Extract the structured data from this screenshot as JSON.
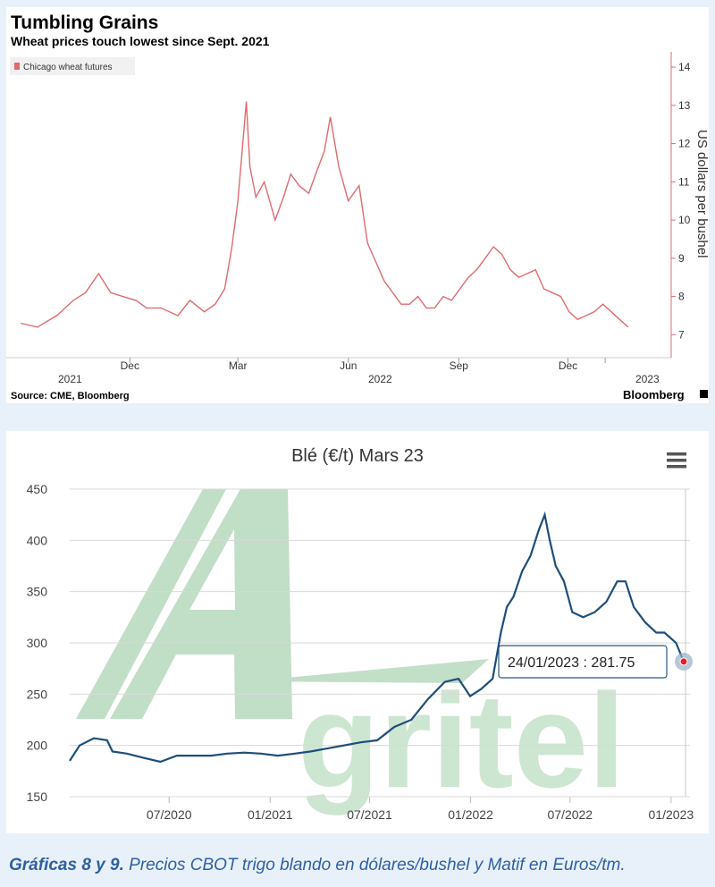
{
  "chart_data": [
    {
      "type": "line",
      "title": "Tumbling Grains",
      "subtitle": "Wheat prices touch lowest since Sept. 2021",
      "ylabel": "US dollars per bushel",
      "legend": "top-left",
      "source": "Source: CME, Bloomberg",
      "brand": "Bloomberg",
      "ylim": [
        6.4,
        14.4
      ],
      "yticks": [
        7,
        8,
        9,
        10,
        11,
        12,
        13,
        14
      ],
      "xticks": [
        "Dec",
        "Mar",
        "Jun",
        "Sep",
        "Dec"
      ],
      "year_labels": [
        "2021",
        "2022",
        "2023"
      ],
      "grid": false,
      "color": "#e06a70",
      "series": [
        {
          "name": "Chicago wheat futures",
          "x": [
            "2021-09-01",
            "2021-09-15",
            "2021-10-01",
            "2021-10-15",
            "2021-10-25",
            "2021-11-05",
            "2021-11-15",
            "2021-11-25",
            "2021-12-06",
            "2021-12-15",
            "2021-12-27",
            "2022-01-10",
            "2022-01-20",
            "2022-02-01",
            "2022-02-10",
            "2022-02-18",
            "2022-02-24",
            "2022-03-01",
            "2022-03-04",
            "2022-03-08",
            "2022-03-11",
            "2022-03-16",
            "2022-03-23",
            "2022-04-01",
            "2022-04-08",
            "2022-04-14",
            "2022-04-21",
            "2022-04-29",
            "2022-05-06",
            "2022-05-12",
            "2022-05-17",
            "2022-05-24",
            "2022-06-01",
            "2022-06-10",
            "2022-06-17",
            "2022-06-24",
            "2022-07-01",
            "2022-07-08",
            "2022-07-15",
            "2022-07-22",
            "2022-07-29",
            "2022-08-05",
            "2022-08-12",
            "2022-08-19",
            "2022-08-26",
            "2022-09-02",
            "2022-09-09",
            "2022-09-16",
            "2022-09-23",
            "2022-09-30",
            "2022-10-07",
            "2022-10-14",
            "2022-10-21",
            "2022-10-28",
            "2022-11-04",
            "2022-11-11",
            "2022-11-18",
            "2022-11-25",
            "2022-12-02",
            "2022-12-09",
            "2022-12-16",
            "2022-12-23",
            "2022-12-30",
            "2023-01-06",
            "2023-01-13",
            "2023-01-20"
          ],
          "values": [
            7.3,
            7.2,
            7.5,
            7.9,
            8.1,
            8.6,
            8.1,
            8.0,
            7.9,
            7.7,
            7.7,
            7.5,
            7.9,
            7.6,
            7.8,
            8.2,
            9.3,
            10.5,
            11.6,
            13.1,
            11.4,
            10.6,
            11.0,
            10.0,
            10.6,
            11.2,
            10.9,
            10.7,
            11.3,
            11.8,
            12.7,
            11.4,
            10.5,
            10.9,
            9.4,
            8.9,
            8.4,
            8.1,
            7.8,
            7.8,
            8.0,
            7.7,
            7.7,
            8.0,
            7.9,
            8.2,
            8.5,
            8.7,
            9.0,
            9.3,
            9.1,
            8.7,
            8.5,
            8.6,
            8.7,
            8.2,
            8.1,
            8.0,
            7.6,
            7.4,
            7.5,
            7.6,
            7.8,
            7.6,
            7.4,
            7.2
          ]
        }
      ]
    },
    {
      "type": "line",
      "title": "Blé (€/t) Mars 23",
      "ylim": [
        150,
        450
      ],
      "yticks": [
        150,
        200,
        250,
        300,
        350,
        400,
        450
      ],
      "xticks": [
        "07/2020",
        "01/2021",
        "07/2021",
        "01/2022",
        "07/2022",
        "01/2023"
      ],
      "grid": true,
      "color": "#1e4e79",
      "watermark": "Agritel",
      "tooltip": "24/01/2023 : 281.75",
      "series": [
        {
          "name": "",
          "x": [
            "2020-01-02",
            "2020-01-20",
            "2020-02-15",
            "2020-03-10",
            "2020-03-20",
            "2020-04-15",
            "2020-05-15",
            "2020-06-15",
            "2020-07-15",
            "2020-08-15",
            "2020-09-15",
            "2020-10-15",
            "2020-11-15",
            "2020-12-15",
            "2021-01-15",
            "2021-02-15",
            "2021-03-15",
            "2021-04-15",
            "2021-05-15",
            "2021-06-15",
            "2021-07-15",
            "2021-08-15",
            "2021-09-15",
            "2021-10-15",
            "2021-11-15",
            "2021-12-10",
            "2021-12-31",
            "2022-01-20",
            "2022-02-10",
            "2022-02-25",
            "2022-03-08",
            "2022-03-20",
            "2022-04-05",
            "2022-04-20",
            "2022-05-05",
            "2022-05-16",
            "2022-05-25",
            "2022-06-05",
            "2022-06-20",
            "2022-07-05",
            "2022-07-25",
            "2022-08-15",
            "2022-09-05",
            "2022-09-25",
            "2022-10-10",
            "2022-10-25",
            "2022-11-15",
            "2022-12-05",
            "2022-12-20",
            "2023-01-10",
            "2023-01-24"
          ],
          "values": [
            185,
            200,
            207,
            205,
            194,
            192,
            188,
            184,
            190,
            190,
            190,
            192,
            193,
            192,
            190,
            192,
            194,
            197,
            200,
            203,
            205,
            218,
            225,
            245,
            262,
            265,
            248,
            255,
            265,
            310,
            335,
            345,
            370,
            385,
            410,
            425,
            400,
            375,
            360,
            330,
            325,
            330,
            340,
            360,
            360,
            335,
            320,
            310,
            310,
            300,
            281.75
          ]
        }
      ]
    }
  ],
  "caption": {
    "bold": "Gráficas 8 y 9.",
    "text": " Precios CBOT trigo blando en dólares/bushel y Matif en Euros/tm."
  }
}
